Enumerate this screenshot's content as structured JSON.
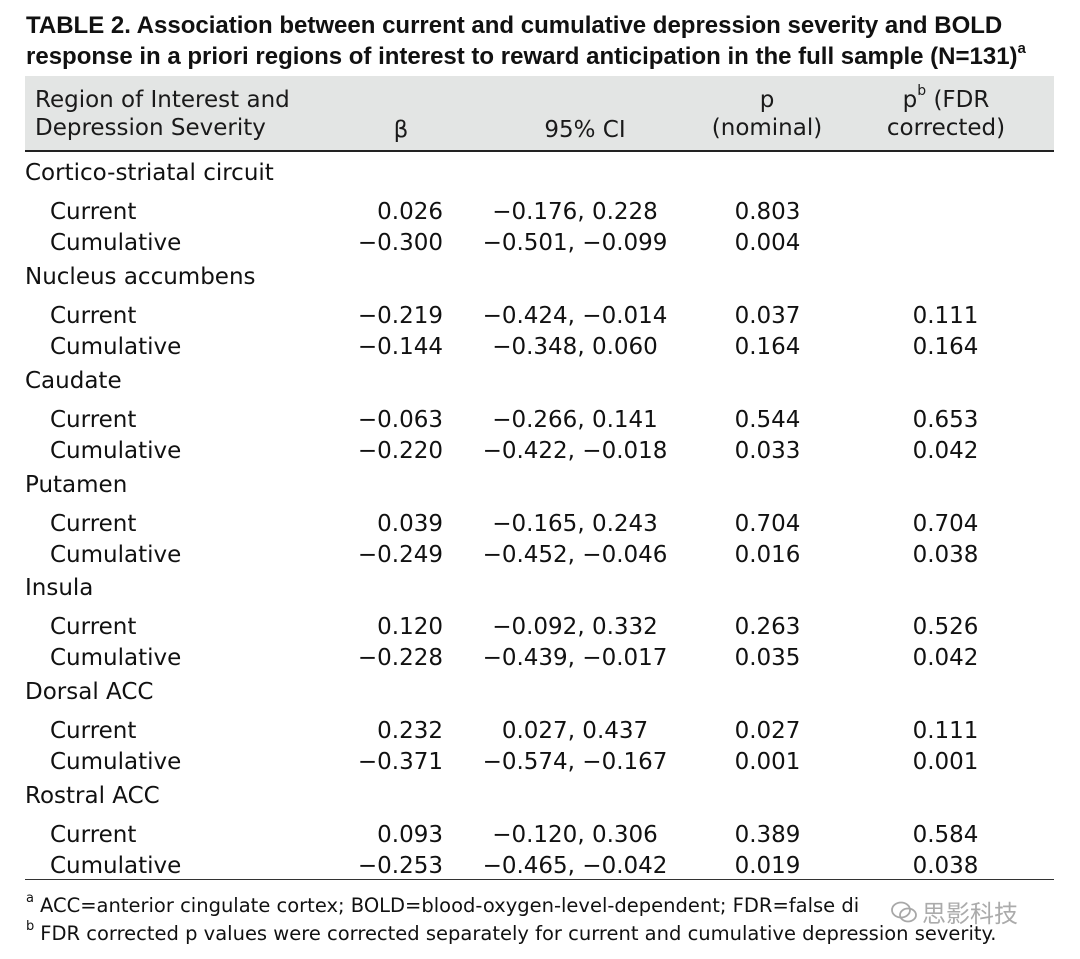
{
  "title": {
    "text": "TABLE 2. Association between current and cumulative depression severity and BOLD response in a priori regions of interest to reward anticipation in the full sample (N=131)",
    "sup": "a"
  },
  "header": {
    "region": [
      "Region of Interest and",
      "Depression Severity"
    ],
    "beta": "β",
    "ci": "95% CI",
    "p_nominal": [
      "p",
      "(nominal)"
    ],
    "p_fdr_base": "p",
    "p_fdr_sup": "b",
    "p_fdr_rest": " (FDR",
    "p_fdr_line2": "corrected)"
  },
  "groups": [
    {
      "name": "Cortico-striatal circuit",
      "rows": [
        {
          "label": "Current",
          "beta": "0.026",
          "ci": "−0.176, 0.228",
          "p_nominal": "0.803",
          "p_fdr": ""
        },
        {
          "label": "Cumulative",
          "beta": "−0.300",
          "ci": "−0.501, −0.099",
          "p_nominal": "0.004",
          "p_fdr": ""
        }
      ]
    },
    {
      "name": "Nucleus accumbens",
      "rows": [
        {
          "label": "Current",
          "beta": "−0.219",
          "ci": "−0.424, −0.014",
          "p_nominal": "0.037",
          "p_fdr": "0.111"
        },
        {
          "label": "Cumulative",
          "beta": "−0.144",
          "ci": "−0.348, 0.060",
          "p_nominal": "0.164",
          "p_fdr": "0.164"
        }
      ]
    },
    {
      "name": "Caudate",
      "rows": [
        {
          "label": "Current",
          "beta": "−0.063",
          "ci": "−0.266, 0.141",
          "p_nominal": "0.544",
          "p_fdr": "0.653"
        },
        {
          "label": "Cumulative",
          "beta": "−0.220",
          "ci": "−0.422, −0.018",
          "p_nominal": "0.033",
          "p_fdr": "0.042"
        }
      ]
    },
    {
      "name": "Putamen",
      "rows": [
        {
          "label": "Current",
          "beta": "0.039",
          "ci": "−0.165, 0.243",
          "p_nominal": "0.704",
          "p_fdr": "0.704"
        },
        {
          "label": "Cumulative",
          "beta": "−0.249",
          "ci": "−0.452, −0.046",
          "p_nominal": "0.016",
          "p_fdr": "0.038"
        }
      ]
    },
    {
      "name": "Insula",
      "rows": [
        {
          "label": "Current",
          "beta": "0.120",
          "ci": "−0.092, 0.332",
          "p_nominal": "0.263",
          "p_fdr": "0.526"
        },
        {
          "label": "Cumulative",
          "beta": "−0.228",
          "ci": "−0.439, −0.017",
          "p_nominal": "0.035",
          "p_fdr": "0.042"
        }
      ]
    },
    {
      "name": "Dorsal ACC",
      "rows": [
        {
          "label": "Current",
          "beta": "0.232",
          "ci": "0.027, 0.437",
          "p_nominal": "0.027",
          "p_fdr": "0.111"
        },
        {
          "label": "Cumulative",
          "beta": "−0.371",
          "ci": "−0.574, −0.167",
          "p_nominal": "0.001",
          "p_fdr": "0.001"
        }
      ]
    },
    {
      "name": "Rostral ACC",
      "rows": [
        {
          "label": "Current",
          "beta": "0.093",
          "ci": "−0.120, 0.306",
          "p_nominal": "0.389",
          "p_fdr": "0.584"
        },
        {
          "label": "Cumulative",
          "beta": "−0.253",
          "ci": "−0.465, −0.042",
          "p_nominal": "0.019",
          "p_fdr": "0.038"
        }
      ]
    }
  ],
  "footnotes": [
    {
      "mark": "a",
      "text": "ACC=anterior cingulate cortex; BOLD=blood-oxygen-level-dependent; FDR=false di"
    },
    {
      "mark": "b",
      "text": "FDR corrected p values were corrected separately for current and cumulative depression severity."
    }
  ],
  "watermark": {
    "icon": "wechat-icon",
    "text": "思影科技"
  },
  "colors": {
    "header_background": "#e3e5e4",
    "text": "#111111",
    "rule": "#222222"
  }
}
